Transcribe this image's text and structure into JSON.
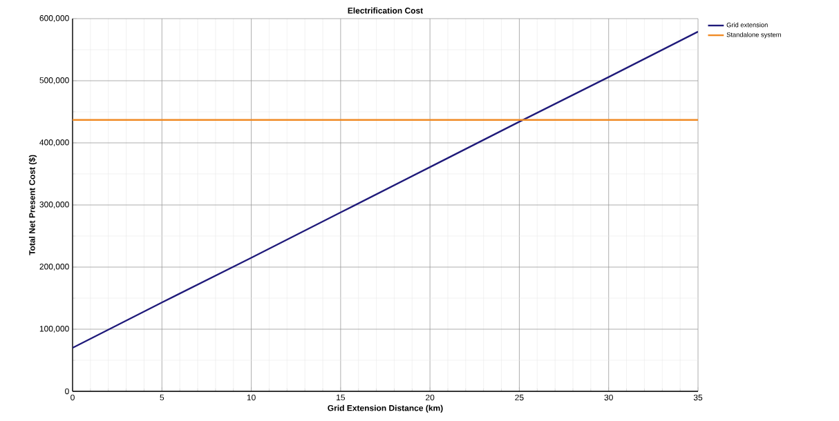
{
  "chart_data": {
    "type": "line",
    "title": "Electrification Cost",
    "xlabel": "Grid Extension Distance (km)",
    "ylabel": "Total Net Present Cost ($)",
    "xlim": [
      0,
      35
    ],
    "ylim": [
      0,
      600000
    ],
    "xticks": [
      0,
      5,
      10,
      15,
      20,
      25,
      30,
      35
    ],
    "yticks": [
      0,
      {
        "value": 100000,
        "label": "100,000"
      },
      {
        "value": 200000,
        "label": "200,000"
      },
      {
        "value": 300000,
        "label": "300,000"
      },
      {
        "value": 400000,
        "label": "400,000"
      },
      {
        "value": 500000,
        "label": "500,000"
      },
      {
        "value": 600000,
        "label": "600,000"
      }
    ],
    "grid": true,
    "legend": "top right",
    "marker": "none",
    "line_style": "solid",
    "series": [
      {
        "name": "Grid extension",
        "color": "#1f1a7a",
        "x": [
          0,
          5,
          10,
          15,
          20,
          25,
          30,
          35
        ],
        "values": [
          70000,
          143000,
          215000,
          288000,
          361000,
          434000,
          506000,
          579000
        ]
      },
      {
        "name": "Standalone system",
        "color": "#f08a24",
        "x": [
          0,
          10,
          20,
          30,
          35
        ],
        "values": [
          437000,
          437000,
          437000,
          437000,
          437000
        ]
      }
    ]
  }
}
